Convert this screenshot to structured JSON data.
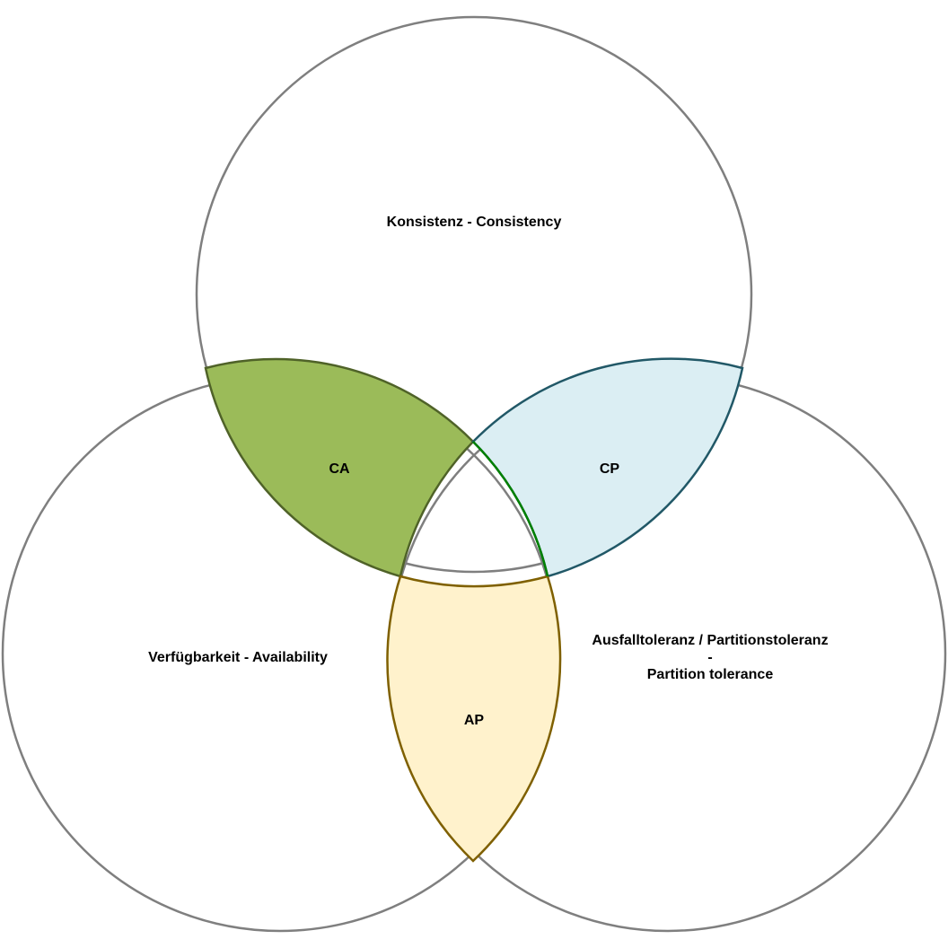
{
  "diagram": {
    "sets": {
      "consistency": "Konsistenz - Consistency",
      "availability": "Verfügbarkeit - Availability",
      "partition_line1": "Ausfalltoleranz / Partitionstoleranz",
      "partition_line2": "-",
      "partition_line3": "Partition tolerance"
    },
    "intersections": {
      "ca": "CA",
      "cp": "CP",
      "ap": "AP"
    },
    "colors": {
      "circle_stroke": "#7f7f7f",
      "ca_fill": "#9bbb59",
      "ca_stroke": "#4f6228",
      "cp_fill": "#dbeef3",
      "cp_stroke": "#215867",
      "ap_fill": "#fff2cc",
      "ap_stroke": "#7f6000",
      "center_stroke": "#008000"
    }
  }
}
